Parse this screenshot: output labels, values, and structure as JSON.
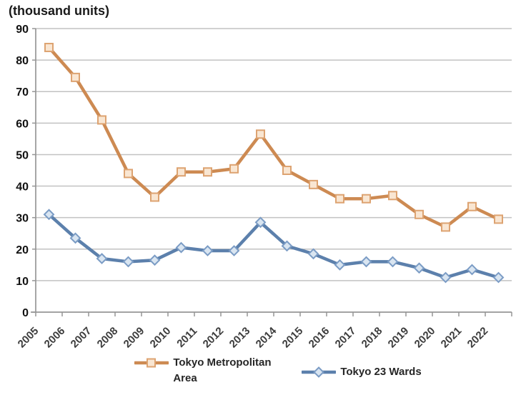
{
  "chart_data": {
    "type": "line",
    "title": "(thousand units)",
    "categories": [
      "2005",
      "2006",
      "2007",
      "2008",
      "2009",
      "2010",
      "2011",
      "2012",
      "2013",
      "2014",
      "2015",
      "2016",
      "2017",
      "2018",
      "2019",
      "2020",
      "2021",
      "2022"
    ],
    "series": [
      {
        "name": "Tokyo Metropolitan Area",
        "marker": "square",
        "line_color": "#cd8a52",
        "marker_fill": "#f9e6d2",
        "marker_stroke": "#dda371",
        "values": [
          84,
          74.5,
          61,
          44,
          36.5,
          44.5,
          44.5,
          45.5,
          56.5,
          45,
          40.5,
          36,
          36,
          37,
          31,
          27,
          33.5,
          29.5
        ]
      },
      {
        "name": "Tokyo 23 Wards",
        "marker": "diamond",
        "line_color": "#5c80ac",
        "marker_fill": "#d9e5f1",
        "marker_stroke": "#7b9cc5",
        "values": [
          31,
          23.5,
          17,
          16,
          16.5,
          20.5,
          19.5,
          19.5,
          28.5,
          21,
          18.5,
          15,
          16,
          16,
          14,
          11,
          13.5,
          11
        ]
      }
    ],
    "ylim": [
      0,
      90
    ],
    "ytick_step": 10,
    "grid": true,
    "legend_position": "bottom",
    "gridline_color": "#c2c2c2",
    "axis_color": "#969696",
    "y_label_color": "#111111",
    "x_label_color": "#3d3d3d"
  }
}
